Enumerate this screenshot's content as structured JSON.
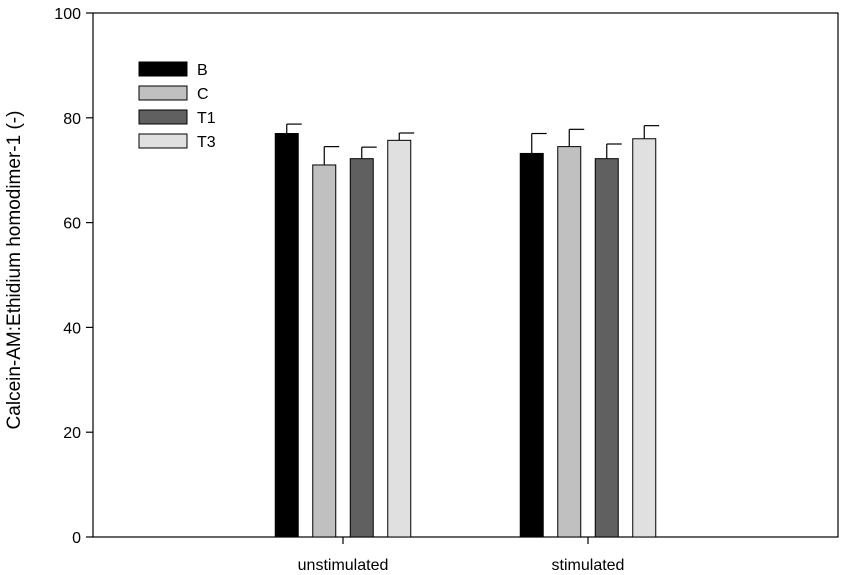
{
  "chart_data": {
    "type": "bar",
    "title": "",
    "xlabel": "",
    "ylabel": "Calcein-AM:Ethidium homodimer-1 (-)",
    "ylim": [
      0,
      100
    ],
    "yticks": [
      0,
      20,
      40,
      60,
      80,
      100
    ],
    "categories": [
      "unstimulated",
      "stimulated"
    ],
    "series": [
      {
        "name": "B",
        "color": "#000000",
        "values": [
          77.0,
          73.2
        ],
        "errors": [
          1.8,
          3.8
        ]
      },
      {
        "name": "C",
        "color": "#c0c0c0",
        "values": [
          71.0,
          74.5
        ],
        "errors": [
          3.5,
          3.3
        ]
      },
      {
        "name": "T1",
        "color": "#606060",
        "values": [
          72.2,
          72.2
        ],
        "errors": [
          2.2,
          2.8
        ]
      },
      {
        "name": "T3",
        "color": "#e0e0e0",
        "values": [
          75.7,
          76.0
        ],
        "errors": [
          1.4,
          2.5
        ]
      }
    ],
    "legend_position": "top-left",
    "grid": false,
    "error_bars": "upper"
  }
}
